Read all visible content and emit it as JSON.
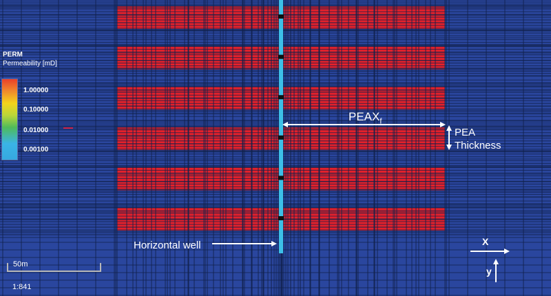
{
  "legend": {
    "property": "PERM",
    "subtitle": "Permeability [mD]",
    "ticks": [
      "1.00000",
      "0.10000",
      "0.01000",
      "0.00100"
    ]
  },
  "annotations": {
    "pea_xf_base": "PEAX",
    "pea_xf_sub": "f",
    "pea_thickness_line1": "PEA",
    "pea_thickness_line2": "Thickness",
    "well_label": "Horizontal well"
  },
  "axes": {
    "x_label": "X",
    "y_label": "y"
  },
  "scale": {
    "length_label": "50m",
    "ratio": "1:841"
  },
  "colors": {
    "background": "#2a469e",
    "fracture": "#e5212b",
    "well": "#3cc0e8",
    "grid_line": "#10204a"
  },
  "fracture_count": 6
}
